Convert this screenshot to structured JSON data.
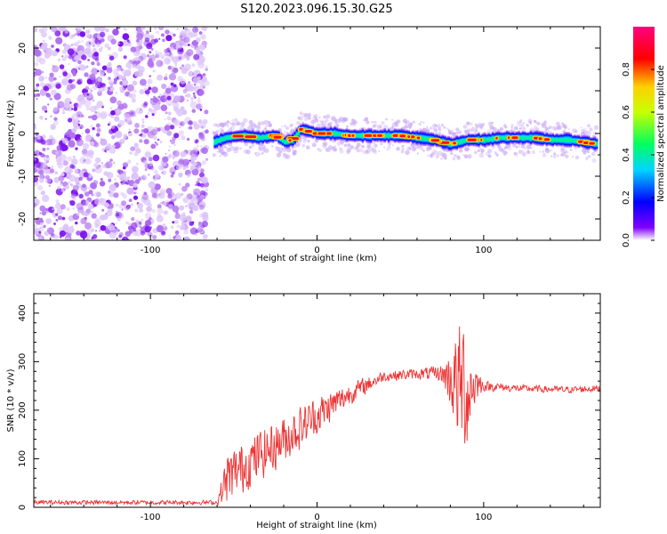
{
  "title": "S120.2023.096.15.30.G25",
  "chart_data": [
    {
      "type": "heatmap",
      "xlabel": "Height of straight line (km)",
      "ylabel": "Frequency (Hz)",
      "xlim": [
        -170,
        170
      ],
      "ylim": [
        -25,
        25
      ],
      "xticks": [
        "-100",
        "0",
        "100"
      ],
      "xtick_values": [
        -100,
        0,
        100
      ],
      "yticks": [
        "-20",
        "-10",
        "0",
        "10",
        "20"
      ],
      "ytick_values": [
        -20,
        -10,
        0,
        10,
        20
      ],
      "noise_region_x": [
        -170,
        -66
      ],
      "ridge": {
        "x": [
          -62,
          -55,
          -45,
          -35,
          -25,
          -20,
          -15,
          -10,
          -5,
          0,
          10,
          20,
          30,
          40,
          50,
          60,
          70,
          75,
          80,
          85,
          90,
          100,
          110,
          120,
          130,
          140,
          150,
          160,
          168
        ],
        "frequency": [
          -2,
          -1,
          -0.5,
          -1,
          -0.5,
          -2,
          -1.5,
          1,
          0.5,
          0,
          0,
          -0.5,
          -0.5,
          -0.5,
          -0.5,
          -1,
          -1.5,
          -2,
          -2.5,
          -2,
          -1.5,
          -1.5,
          -1,
          -1,
          -1,
          -1.5,
          -1.5,
          -2,
          -2.5
        ]
      },
      "colorbar": {
        "label": "Normalized spectral amplitude",
        "range": [
          0,
          1
        ],
        "ticks": [
          "0.0",
          "0.2",
          "0.4",
          "0.6",
          "0.8"
        ],
        "tick_values": [
          0,
          0.2,
          0.4,
          0.6,
          0.8
        ],
        "colormap": [
          "#ffffff",
          "#7f00ff",
          "#0000ff",
          "#00d5ff",
          "#00ff60",
          "#c8ff00",
          "#ffd000",
          "#ff0000",
          "#ff0080"
        ]
      }
    },
    {
      "type": "line",
      "xlabel": "Height of straight line (km)",
      "ylabel": "SNR (10 * v/v)",
      "xlim": [
        -170,
        170
      ],
      "ylim": [
        0,
        440
      ],
      "xticks": [
        "-100",
        "0",
        "100"
      ],
      "xtick_values": [
        -100,
        0,
        100
      ],
      "yticks": [
        "0",
        "100",
        "200",
        "300",
        "400"
      ],
      "ytick_values": [
        0,
        100,
        200,
        300,
        400
      ],
      "color": "#ee3333",
      "envelope": {
        "x": [
          -170,
          -60,
          -54,
          -40,
          -20,
          0,
          20,
          40,
          60,
          75,
          80,
          85,
          88,
          90,
          93,
          96,
          100,
          120,
          150,
          170
        ],
        "mean": [
          10,
          10,
          60,
          95,
          140,
          190,
          235,
          270,
          275,
          275,
          265,
          250,
          250,
          230,
          250,
          255,
          250,
          245,
          242,
          245
        ],
        "amplitude": [
          5,
          5,
          60,
          60,
          55,
          45,
          25,
          12,
          12,
          20,
          70,
          140,
          170,
          120,
          80,
          40,
          12,
          8,
          8,
          8
        ]
      }
    }
  ]
}
